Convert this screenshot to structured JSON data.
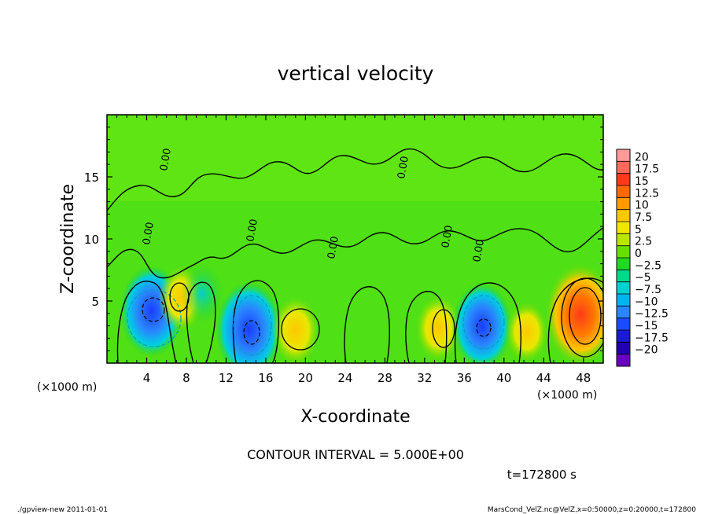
{
  "chart_data": {
    "type": "heatmap",
    "title": "vertical velocity",
    "xlabel": "X-coordinate",
    "ylabel": "Z-coordinate",
    "x_unit_label": "(×1000 m)",
    "y_unit_label": "(×1000 m)",
    "xlim": [
      0,
      50
    ],
    "ylim": [
      0,
      20
    ],
    "x_ticks": [
      4,
      8,
      12,
      16,
      20,
      24,
      28,
      32,
      36,
      40,
      44,
      48
    ],
    "y_ticks": [
      5,
      10,
      15
    ],
    "colorbar": {
      "labels": [
        "20",
        "17.5",
        "15",
        "12.5",
        "10",
        "7.5",
        "5",
        "2.5",
        "0",
        "−2.5",
        "−5",
        "−7.5",
        "−10",
        "−12.5",
        "−15",
        "−17.5",
        "−20"
      ],
      "colors": [
        "#ff9a9a",
        "#ff6a5a",
        "#ff3a1a",
        "#ff6a00",
        "#ff9a00",
        "#ffc800",
        "#f0e600",
        "#b8e600",
        "#66e000",
        "#22d822",
        "#00d88a",
        "#00d0d0",
        "#00b4f0",
        "#2a86ff",
        "#1a4cff",
        "#1a1ad2",
        "#2200b0",
        "#6a00c0"
      ]
    },
    "contour_label": "0.00",
    "anomalies": [
      {
        "x": 4.5,
        "z": 4.2,
        "value": -12,
        "sign": "negative"
      },
      {
        "x": 7.5,
        "z": 5.2,
        "value": 7,
        "sign": "positive"
      },
      {
        "x": 9.6,
        "z": 5.6,
        "value": -6,
        "sign": "negative"
      },
      {
        "x": 14.3,
        "z": 2.7,
        "value": -13,
        "sign": "negative"
      },
      {
        "x": 19.0,
        "z": 2.6,
        "value": 7.5,
        "sign": "positive"
      },
      {
        "x": 33.4,
        "z": 2.8,
        "value": 7,
        "sign": "positive"
      },
      {
        "x": 37.8,
        "z": 3.0,
        "value": -11,
        "sign": "negative"
      },
      {
        "x": 42.3,
        "z": 2.5,
        "value": 6,
        "sign": "positive"
      },
      {
        "x": 47.7,
        "z": 3.9,
        "value": 14,
        "sign": "positive"
      }
    ],
    "contour_interval_text": "CONTOUR INTERVAL = 5.000E+00",
    "time_text": "t=172800 s",
    "footer_left": "./gpview-new   2011-01-01",
    "footer_right": "MarsCond_VelZ.nc@VelZ,x=0:50000,z=0:20000,t=172800"
  }
}
